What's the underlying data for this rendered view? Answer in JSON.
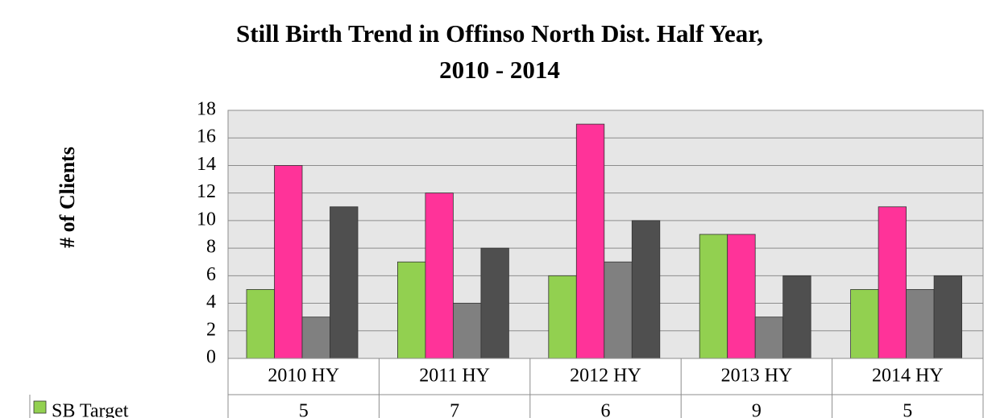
{
  "chart_data": {
    "type": "bar",
    "title": [
      "Still Birth Trend in Offinso North Dist. Half Year,",
      "2010 - 2014"
    ],
    "y_label": "# of Clients",
    "categories": [
      "2010 HY",
      "2011 HY",
      "2012 HY",
      "2013 HY",
      "2014 HY"
    ],
    "series": [
      {
        "name": "SB Target",
        "color": "#92d050",
        "values": [
          5,
          7,
          6,
          9,
          5
        ]
      },
      {
        "color": "#ff3399",
        "values": [
          14,
          12,
          17,
          9,
          11
        ]
      },
      {
        "color": "#808080",
        "values": [
          3,
          4,
          7,
          3,
          5
        ]
      },
      {
        "color": "#4f4f4f",
        "values": [
          11,
          8,
          10,
          6,
          6
        ]
      }
    ],
    "ylim": [
      0,
      18
    ],
    "yticks": [
      0,
      2,
      4,
      6,
      8,
      10,
      12,
      14,
      16,
      18
    ],
    "grid": true,
    "legend": "data-table"
  }
}
